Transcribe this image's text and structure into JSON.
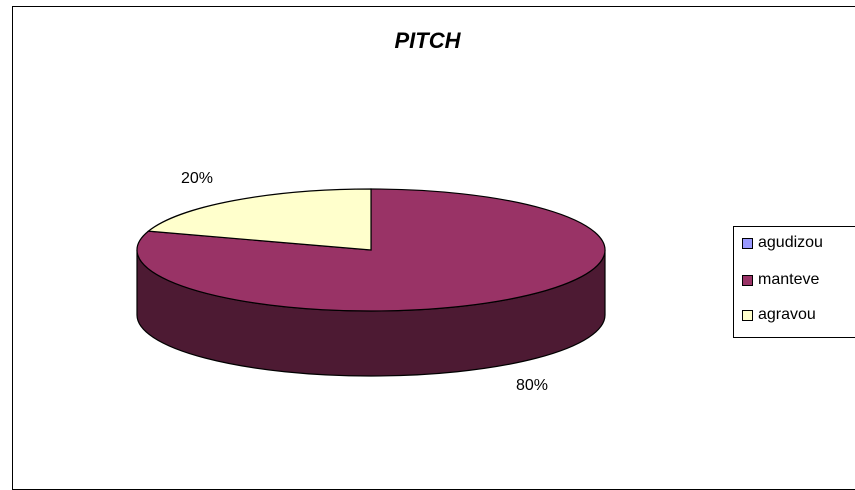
{
  "chart_data": {
    "type": "pie",
    "title": "PITCH",
    "categories": [
      "agudizou",
      "manteve",
      "agravou"
    ],
    "values": [
      0,
      80,
      20
    ],
    "labels": [
      "",
      "80%",
      "20%"
    ],
    "colors": [
      "#9999ff",
      "#993366",
      "#ffffcc"
    ],
    "legend": "right"
  }
}
